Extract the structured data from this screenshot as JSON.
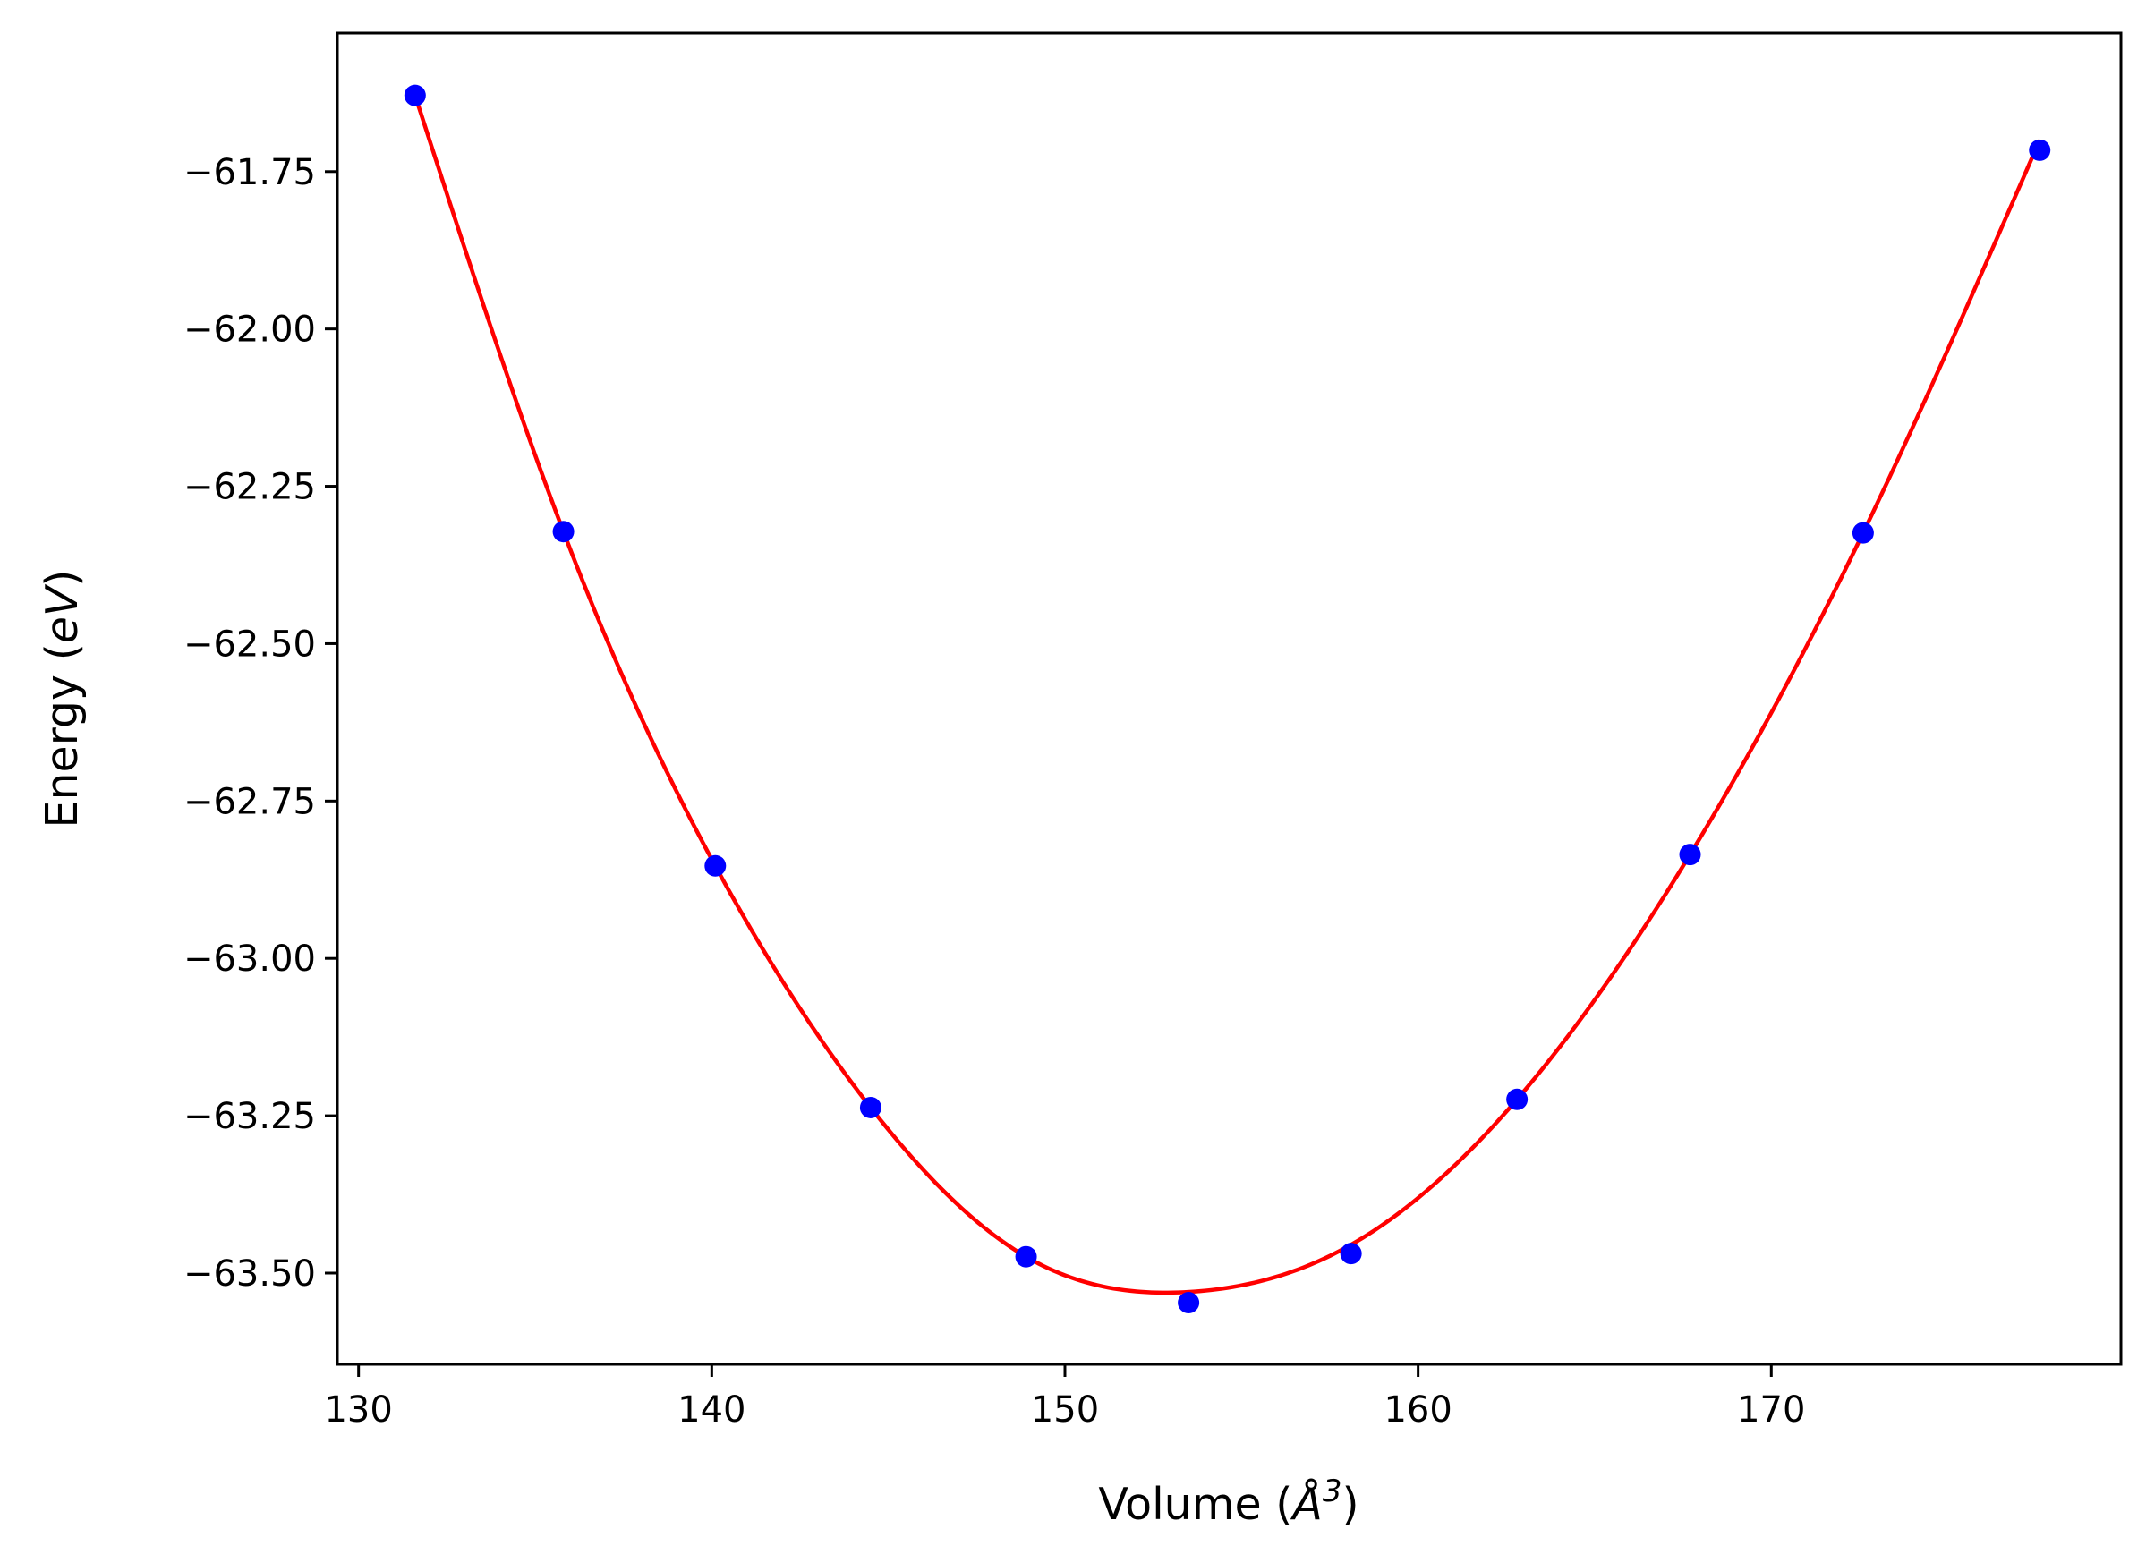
{
  "chart_data": {
    "type": "scatter",
    "xlabel": "Volume (",
    "xlabel_unit": "Å",
    "xlabel_exp": "3",
    "xlabel_close": ")",
    "ylabel": "Energy (",
    "ylabel_unit": "eV",
    "ylabel_close": ")",
    "xlim": [
      129.4,
      179.9
    ],
    "ylim": [
      -63.645,
      -61.53
    ],
    "xticks": [
      130,
      140,
      150,
      160,
      170
    ],
    "xtick_labels": [
      "130",
      "140",
      "150",
      "160",
      "170"
    ],
    "yticks": [
      -61.75,
      -62.0,
      -62.25,
      -62.5,
      -62.75,
      -63.0,
      -63.25,
      -63.5
    ],
    "ytick_labels": [
      "−61.75",
      "−62.00",
      "−62.25",
      "−62.50",
      "−62.75",
      "−63.00",
      "−63.25",
      "−63.50"
    ],
    "grid": false,
    "series": [
      {
        "kind": "points",
        "color": "#0000ff",
        "x": [
          131.6,
          135.8,
          140.1,
          144.5,
          148.9,
          153.5,
          158.1,
          162.8,
          167.7,
          172.6,
          177.6
        ],
        "y": [
          -61.629,
          -62.322,
          -62.853,
          -63.237,
          -63.474,
          -63.547,
          -63.469,
          -63.224,
          -62.835,
          -62.324,
          -61.716
        ]
      },
      {
        "kind": "fit-curve",
        "color": "#ff0000",
        "x": [
          131.6,
          135.8,
          140.1,
          144.5,
          148.9,
          153.5,
          158.1,
          162.8,
          167.7,
          172.6,
          177.6
        ],
        "y": [
          -61.629,
          -62.322,
          -62.853,
          -63.237,
          -63.474,
          -63.53,
          -63.455,
          -63.224,
          -62.835,
          -62.324,
          -61.7
        ]
      }
    ]
  }
}
